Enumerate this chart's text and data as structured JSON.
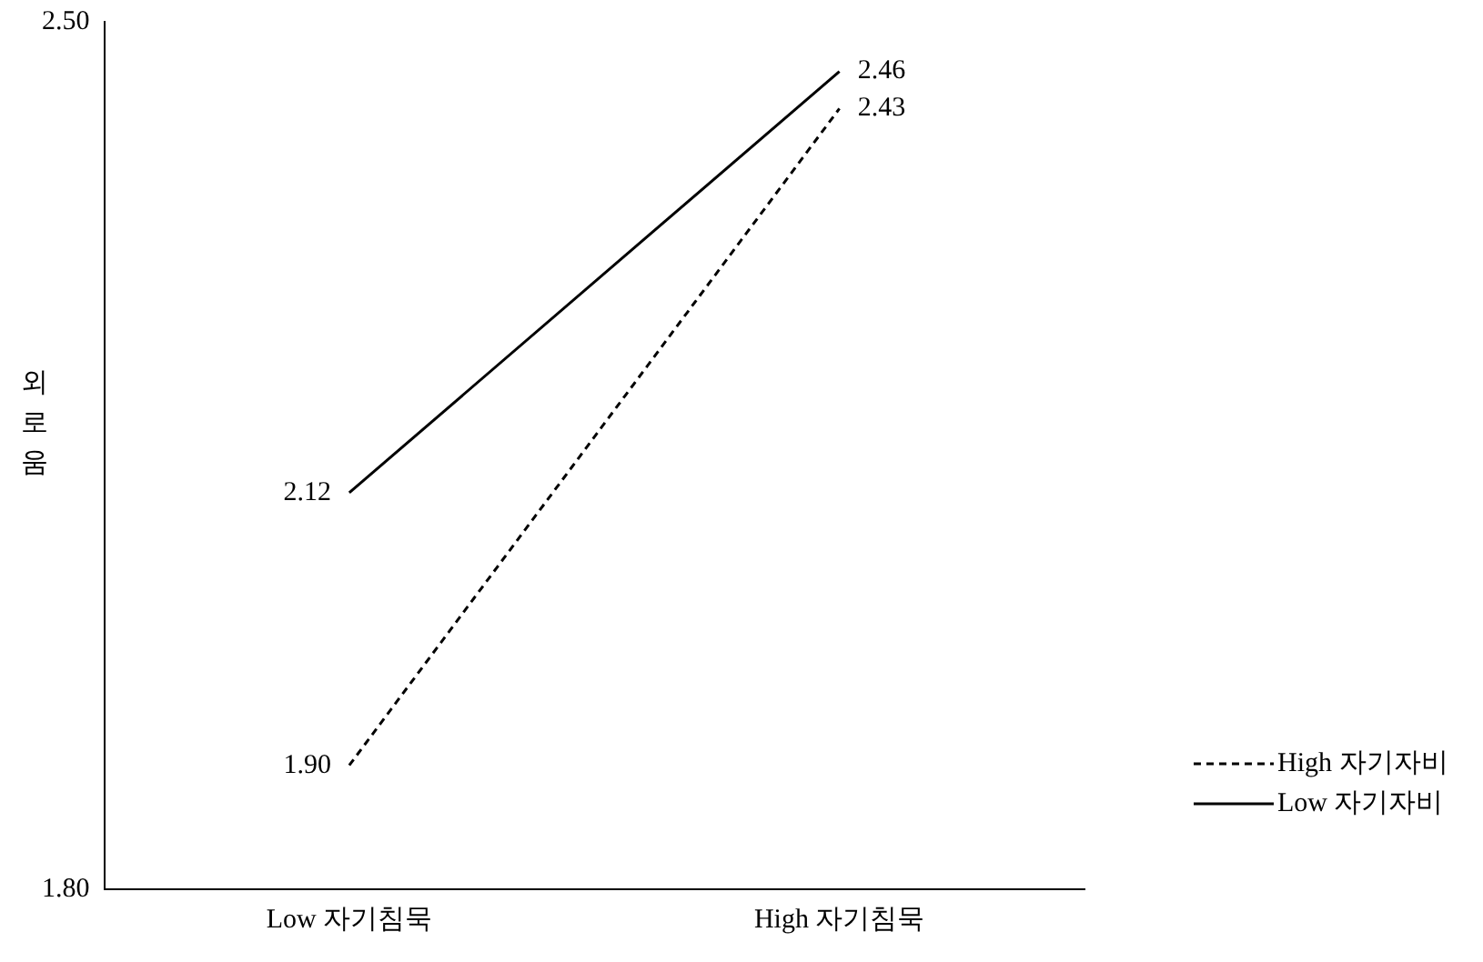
{
  "chart_data": {
    "type": "line",
    "ylabel": "외로움",
    "categories": [
      "Low 자기침묵",
      "High 자기침묵"
    ],
    "series": [
      {
        "name": "High 자기자비",
        "color": "#000000",
        "line_style": "dashed",
        "values": [
          1.9,
          2.43
        ],
        "value_labels": [
          "1.90",
          "2.43"
        ]
      },
      {
        "name": "Low 자기자비",
        "color": "#000000",
        "line_style": "solid",
        "values": [
          2.12,
          2.46
        ],
        "value_labels": [
          "2.12",
          "2.46"
        ]
      }
    ],
    "ylim": [
      1.8,
      2.5
    ],
    "yticks": [
      {
        "value": 1.8,
        "label": "1.80"
      },
      {
        "value": 2.5,
        "label": "2.50"
      }
    ],
    "grid": false,
    "legend": "right",
    "marker": "none"
  }
}
